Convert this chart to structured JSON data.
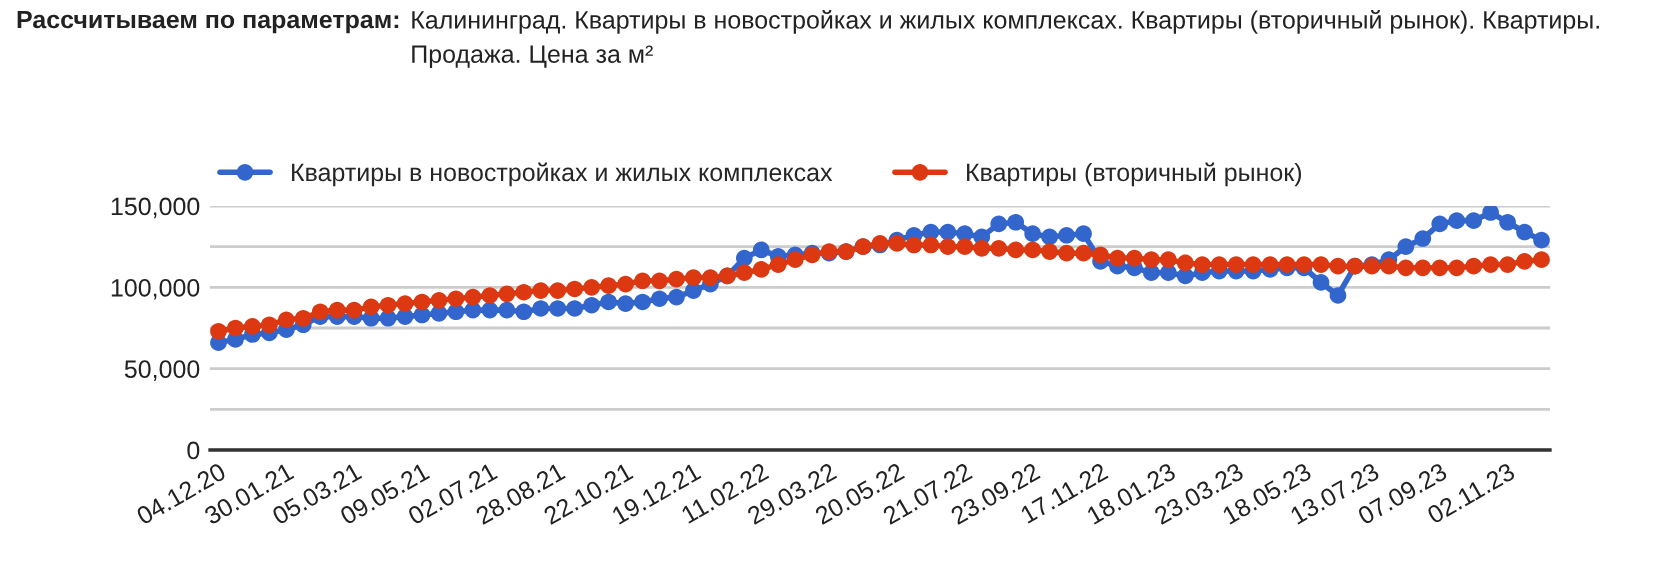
{
  "chart_data": {
    "type": "line",
    "title": "Рассчитываем по параметрам:",
    "subtitle": "Калининград. Квартиры в новостройках и жилых комплексах. Квартиры (вторичный рынок). Квартиры. Продажа. Цена за м²",
    "categories": [
      "04.12.20",
      null,
      null,
      null,
      "30.01.21",
      null,
      null,
      null,
      "05.03.21",
      null,
      null,
      null,
      "09.05.21",
      null,
      null,
      null,
      "02.07.21",
      null,
      null,
      null,
      "28.08.21",
      null,
      null,
      null,
      "22.10.21",
      null,
      null,
      null,
      "19.12.21",
      null,
      null,
      null,
      "11.02.22",
      null,
      null,
      null,
      "29.03.22",
      null,
      null,
      null,
      "20.05.22",
      null,
      null,
      null,
      "21.07.22",
      null,
      null,
      null,
      "23.09.22",
      null,
      null,
      null,
      "17.11.22",
      null,
      null,
      null,
      "18.01.23",
      null,
      null,
      null,
      "23.03.23",
      null,
      null,
      null,
      "18.05.23",
      null,
      null,
      null,
      "13.07.23",
      null,
      null,
      null,
      "07.09.23",
      null,
      null,
      null,
      "02.11.23",
      null,
      null
    ],
    "series": [
      {
        "name": "Квартиры в новостройках и жилых комплексах",
        "color": "#3366cc",
        "values": [
          66000,
          68000,
          71000,
          72000,
          74000,
          77000,
          82000,
          82000,
          82000,
          81000,
          81000,
          82000,
          83000,
          84000,
          85000,
          86000,
          86000,
          86000,
          85000,
          87000,
          87000,
          87000,
          89000,
          91000,
          90000,
          91000,
          93000,
          94000,
          98000,
          102000,
          107000,
          118000,
          123000,
          119000,
          120000,
          121000,
          121000,
          122000,
          125000,
          126000,
          129000,
          132000,
          134000,
          134000,
          133000,
          131000,
          139000,
          140000,
          133000,
          131000,
          132000,
          133000,
          116000,
          113000,
          112000,
          109000,
          109000,
          107000,
          109000,
          110000,
          110000,
          110000,
          111000,
          112000,
          112000,
          103000,
          95000,
          113000,
          114000,
          117000,
          125000,
          130000,
          139000,
          141000,
          141000,
          146000,
          140000,
          134000,
          129000
        ]
      },
      {
        "name": "Квартиры (вторичный рынок)",
        "color": "#dc3912",
        "values": [
          73000,
          75000,
          76000,
          77000,
          80000,
          81000,
          85000,
          86000,
          86000,
          88000,
          89000,
          90000,
          91000,
          92000,
          93000,
          94000,
          95000,
          96000,
          97000,
          98000,
          98000,
          99000,
          100000,
          101000,
          102000,
          104000,
          104000,
          105000,
          106000,
          106000,
          107000,
          109000,
          111000,
          114000,
          117000,
          120000,
          122000,
          122000,
          125000,
          127000,
          127000,
          126000,
          126000,
          125000,
          125000,
          124000,
          124000,
          123000,
          123000,
          122000,
          121000,
          121000,
          120000,
          118000,
          118000,
          117000,
          117000,
          115000,
          114000,
          114000,
          114000,
          114000,
          114000,
          114000,
          114000,
          114000,
          113000,
          113000,
          113000,
          113000,
          112000,
          112000,
          112000,
          112000,
          113000,
          114000,
          114000,
          116000,
          117000
        ]
      }
    ],
    "ylim": [
      0,
      150000
    ],
    "yticks": [
      0,
      {
        "value": 25000,
        "label": null
      },
      {
        "value": 50000,
        "label": "50,000"
      },
      {
        "value": 75000,
        "label": null
      },
      {
        "value": 100000,
        "label": "100,000"
      },
      {
        "value": 125000,
        "label": null
      },
      {
        "value": 150000,
        "label": "150,000"
      }
    ],
    "grid": "y",
    "legend": "top",
    "marker": "circle",
    "line_style": "solid"
  }
}
